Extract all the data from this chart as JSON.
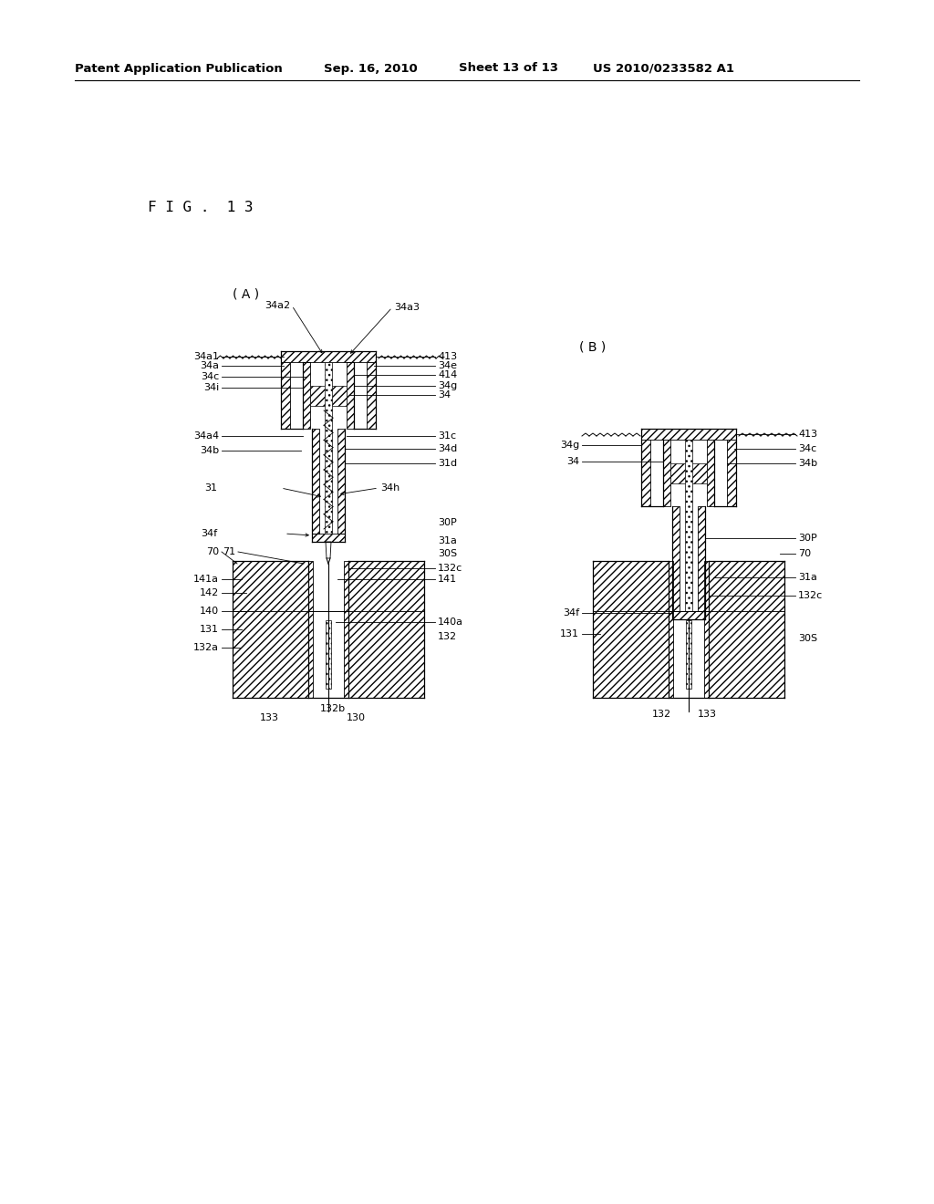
{
  "bg_color": "#ffffff",
  "header_text": "Patent Application Publication",
  "header_date": "Sep. 16, 2010",
  "header_sheet": "Sheet 13 of 13",
  "header_patent": "US 2010/0233582 A1",
  "fig_label": "F I G .  1 3",
  "diagram_A_label": "( A )",
  "diagram_B_label": "( B )",
  "line_color": "#000000",
  "font_size_header": 9.5,
  "font_size_ref": 8.0,
  "font_size_fig": 11.5
}
